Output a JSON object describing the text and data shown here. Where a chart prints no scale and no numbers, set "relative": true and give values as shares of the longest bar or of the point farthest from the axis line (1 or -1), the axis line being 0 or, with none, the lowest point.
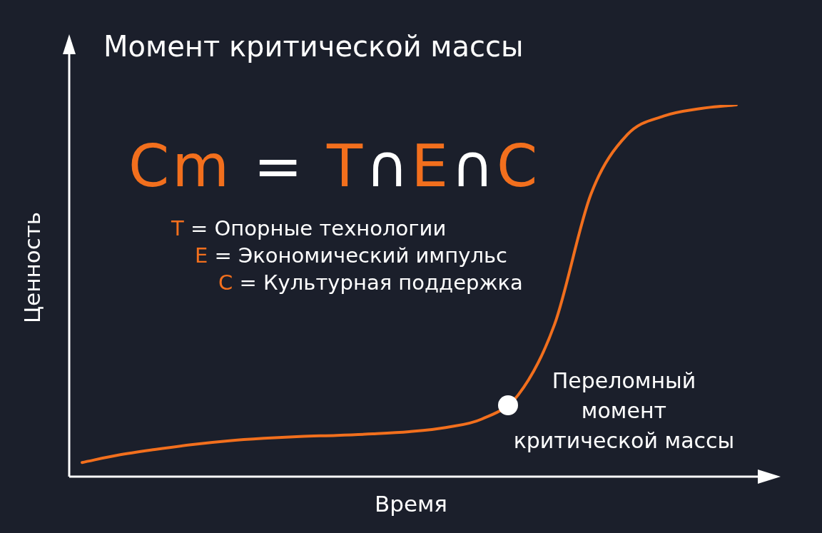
{
  "chart_data": {
    "type": "line",
    "title": "Момент критической массы",
    "xlabel": "Время",
    "ylabel": "Ценность",
    "relative": true,
    "marker": "none",
    "legend": false,
    "categories": [
      null,
      null,
      null,
      null,
      null,
      null,
      null,
      null,
      null,
      null,
      null,
      null,
      null,
      null,
      null,
      null,
      null,
      null,
      null
    ],
    "series": [
      {
        "color": "#f26f1d",
        "values": [
          0.038,
          0.058,
          0.073,
          0.086,
          0.096,
          0.103,
          0.108,
          0.111,
          0.115,
          0.121,
          0.132,
          0.155,
          0.22,
          0.41,
          0.76,
          0.92,
          0.97,
          0.99,
          1
        ]
      }
    ],
    "annotations": [
      "Cm = T∩E∩C",
      "T = Опорные технологии",
      "E = Экономический импульс",
      "C = Культурная поддержка",
      "Переломный момент критической массы"
    ]
  }
}
